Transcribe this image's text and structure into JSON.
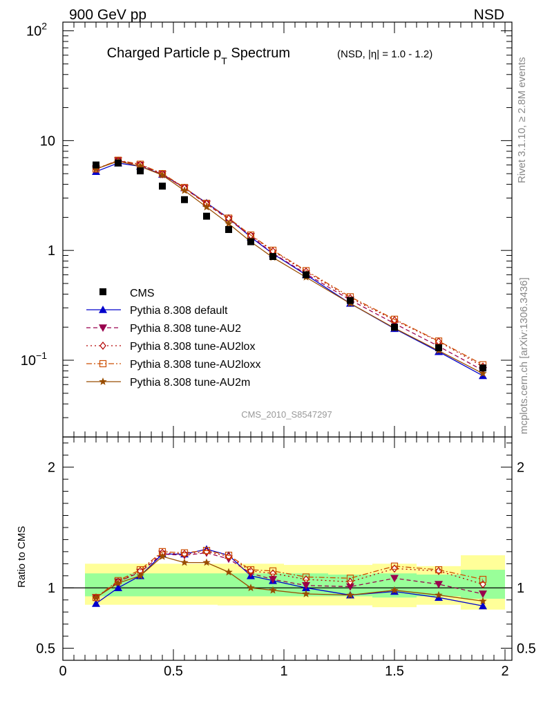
{
  "header": {
    "left": "900 GeV pp",
    "right": "NSD"
  },
  "chart_data": {
    "type": "line",
    "title": "Charged Particle p",
    "title_sub": "T",
    "title_rest": " Spectrum",
    "title_extra": "(NSD, |η| = 1.0 - 1.2)",
    "analysis_label": "CMS_2010_S8547297",
    "side_label_top": "Rivet 3.1.10, ≥ 2.8M events",
    "side_label_bottom": "mcplots.cern.ch [arXiv:1306.3436]",
    "ylabel_ratio": "Ratio to CMS",
    "xlim": [
      0,
      2
    ],
    "ylim": [
      0.02,
      120
    ],
    "y_scale": "log",
    "ratio_ylim": [
      0.4,
      2.25
    ],
    "x_ticks": [
      "0",
      "0.5",
      "1",
      "1.5",
      "2"
    ],
    "x_tick_values": [
      0,
      0.5,
      1,
      1.5,
      2
    ],
    "y_ticks_main": [
      {
        "value": 100,
        "label": "10",
        "exp": "2"
      },
      {
        "value": 10,
        "label": "10",
        "exp": ""
      },
      {
        "value": 1,
        "label": "1",
        "exp": ""
      },
      {
        "value": 0.1,
        "label": "10",
        "exp": "−1"
      }
    ],
    "y_ticks_ratio": [
      {
        "value": 0.5,
        "label": "0.5"
      },
      {
        "value": 1,
        "label": "1"
      },
      {
        "value": 2,
        "label": "2"
      }
    ],
    "x": [
      0.15,
      0.25,
      0.35,
      0.45,
      0.55,
      0.65,
      0.75,
      0.85,
      0.95,
      1.1,
      1.3,
      1.5,
      1.7,
      1.9
    ],
    "bin_edges": [
      0.1,
      0.2,
      0.3,
      0.4,
      0.5,
      0.6,
      0.7,
      0.8,
      0.9,
      1.0,
      1.2,
      1.4,
      1.6,
      1.8,
      2.0
    ],
    "cms": [
      6.0,
      6.25,
      5.3,
      3.85,
      2.9,
      2.05,
      1.55,
      1.2,
      0.88,
      0.6,
      0.35,
      0.2,
      0.13,
      0.085
    ],
    "band_outer": [
      [
        0.86,
        1.2
      ],
      [
        0.86,
        1.2
      ],
      [
        0.86,
        1.2
      ],
      [
        0.86,
        1.2
      ],
      [
        0.86,
        1.2
      ],
      [
        0.86,
        1.2
      ],
      [
        0.855,
        1.2
      ],
      [
        0.855,
        1.2
      ],
      [
        0.855,
        1.2
      ],
      [
        0.855,
        1.19
      ],
      [
        0.855,
        1.19
      ],
      [
        0.84,
        1.2
      ],
      [
        0.86,
        1.18
      ],
      [
        0.82,
        1.27
      ]
    ],
    "band_inner": [
      [
        0.93,
        1.12
      ],
      [
        0.93,
        1.12
      ],
      [
        0.93,
        1.12
      ],
      [
        0.93,
        1.12
      ],
      [
        0.93,
        1.12
      ],
      [
        0.93,
        1.12
      ],
      [
        0.93,
        1.12
      ],
      [
        0.93,
        1.12
      ],
      [
        0.93,
        1.12
      ],
      [
        0.93,
        1.12
      ],
      [
        0.93,
        1.11
      ],
      [
        0.92,
        1.12
      ],
      [
        0.93,
        1.11
      ],
      [
        0.91,
        1.15
      ]
    ],
    "series": [
      {
        "name": "Pythia 8.308 default",
        "color": "#0000cc",
        "dash": "",
        "marker": "triangle-up",
        "ratio": [
          0.87,
          1.0,
          1.1,
          1.28,
          1.28,
          1.32,
          1.27,
          1.1,
          1.06,
          1.0,
          0.94,
          0.97,
          0.92,
          0.85
        ]
      },
      {
        "name": "Pythia 8.308 tune-AU2",
        "color": "#99004d",
        "dash": "6,4",
        "marker": "triangle-down",
        "ratio": [
          0.92,
          1.05,
          1.13,
          1.28,
          1.27,
          1.29,
          1.24,
          1.12,
          1.07,
          1.02,
          1.01,
          1.08,
          1.03,
          0.95
        ]
      },
      {
        "name": "Pythia 8.308 tune-AU2lox",
        "color": "#b30000",
        "dash": "2,4",
        "marker": "diamond",
        "ratio": [
          0.92,
          1.05,
          1.14,
          1.29,
          1.28,
          1.3,
          1.26,
          1.14,
          1.12,
          1.07,
          1.05,
          1.16,
          1.14,
          1.03
        ]
      },
      {
        "name": "Pythia 8.308 tune-AU2loxx",
        "color": "#cc4d00",
        "dash": "8,3,2,3",
        "marker": "square-open",
        "ratio": [
          0.92,
          1.06,
          1.15,
          1.3,
          1.29,
          1.31,
          1.27,
          1.15,
          1.14,
          1.09,
          1.08,
          1.18,
          1.15,
          1.07
        ]
      },
      {
        "name": "Pythia 8.308 tune-AU2m",
        "color": "#994d00",
        "dash": "",
        "marker": "star",
        "ratio": [
          0.92,
          1.04,
          1.1,
          1.26,
          1.21,
          1.21,
          1.13,
          1.0,
          0.98,
          0.95,
          0.94,
          0.98,
          0.94,
          0.89
        ]
      }
    ],
    "legend": {
      "position": "bottom-left",
      "data_label": "CMS"
    },
    "colors": {
      "band_outer": "#ffff99",
      "band_inner": "#99ff99",
      "data": "#000000"
    }
  }
}
